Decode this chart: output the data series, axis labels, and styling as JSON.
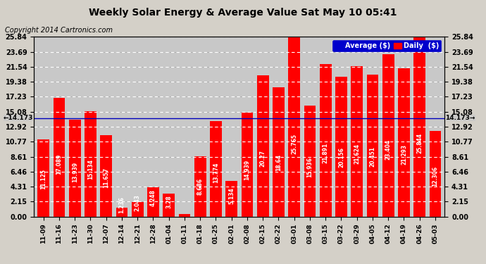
{
  "title": "Weekly Solar Energy & Average Value Sat May 10 05:41",
  "copyright": "Copyright 2014 Cartronics.com",
  "categories": [
    "11-09",
    "11-16",
    "11-23",
    "11-30",
    "12-07",
    "12-14",
    "12-21",
    "12-28",
    "01-04",
    "01-11",
    "01-18",
    "01-25",
    "02-01",
    "02-08",
    "02-15",
    "02-22",
    "03-01",
    "03-08",
    "03-15",
    "03-22",
    "03-29",
    "04-05",
    "04-12",
    "04-19",
    "04-26",
    "05-03"
  ],
  "values": [
    11.125,
    17.089,
    13.939,
    15.134,
    11.657,
    1.236,
    2.043,
    4.248,
    3.28,
    0.392,
    8.686,
    13.774,
    5.134,
    14.939,
    20.27,
    18.64,
    25.765,
    15.936,
    21.891,
    20.156,
    21.624,
    20.451,
    23.404,
    21.293,
    25.844,
    12.306
  ],
  "average_line": 14.173,
  "bar_color": "#ff0000",
  "average_color": "#0000bb",
  "background_color": "#d4d0c8",
  "plot_bg_color": "#c8c8c8",
  "grid_color": "#aaaaaa",
  "ylim": [
    0,
    25.84
  ],
  "yticks": [
    0.0,
    2.15,
    4.31,
    6.46,
    8.61,
    10.77,
    12.92,
    15.08,
    17.23,
    19.38,
    21.54,
    23.69,
    25.84
  ],
  "ytick_labels": [
    "0.00",
    "2.15",
    "4.31",
    "6.46",
    "8.61",
    "10.77",
    "12.92",
    "15.08",
    "17.23",
    "19.38",
    "21.54",
    "23.69",
    "25.84"
  ],
  "value_label_min": 1.0,
  "bar_label_fontsize": 5.5,
  "title_fontsize": 10,
  "copyright_fontsize": 7
}
